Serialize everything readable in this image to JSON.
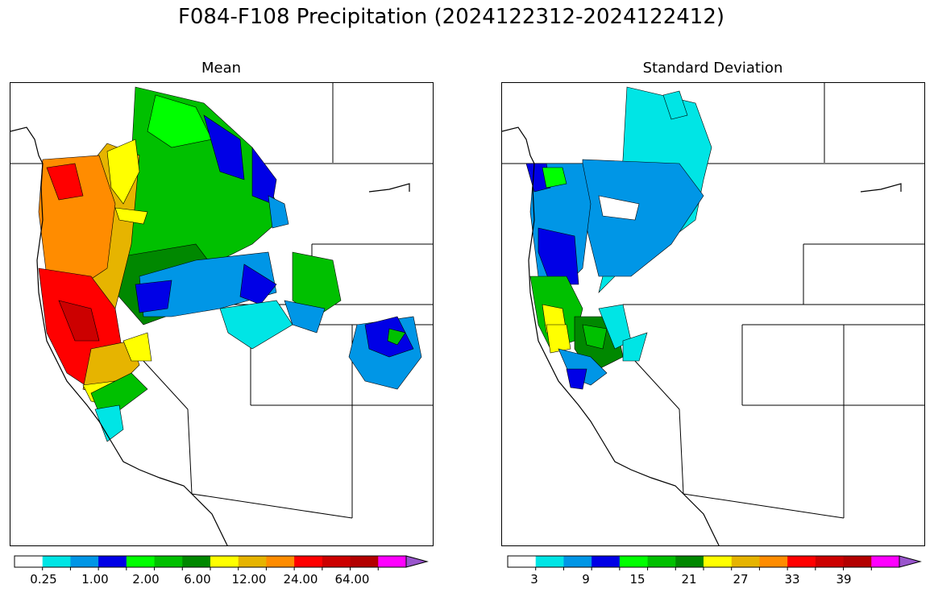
{
  "figure": {
    "title": "F084-F108 Precipitation (2024122312-2024122412)"
  },
  "panels": [
    {
      "title": "Mean",
      "colorbar": {
        "colors": [
          "#ffffff",
          "#00e5e5",
          "#0096e6",
          "#0000e6",
          "#00ff00",
          "#00c000",
          "#008800",
          "#ffff00",
          "#e6b400",
          "#ff8c00",
          "#ff0000",
          "#cc0000",
          "#b30000",
          "#ff00ff",
          "#9955cc"
        ],
        "extend": "max",
        "tick_labels": [
          "0.25",
          "1.00",
          "2.00",
          "6.00",
          "12.00",
          "24.00",
          "64.00"
        ]
      }
    },
    {
      "title": "Standard Deviation",
      "colorbar": {
        "colors": [
          "#ffffff",
          "#00e5e5",
          "#0096e6",
          "#0000e6",
          "#00ff00",
          "#00c000",
          "#008800",
          "#ffff00",
          "#e6b400",
          "#ff8c00",
          "#ff0000",
          "#cc0000",
          "#b30000",
          "#ff00ff",
          "#9955cc"
        ],
        "extend": "max",
        "tick_labels": [
          "3",
          "9",
          "15",
          "21",
          "27",
          "33",
          "39"
        ]
      }
    }
  ]
}
